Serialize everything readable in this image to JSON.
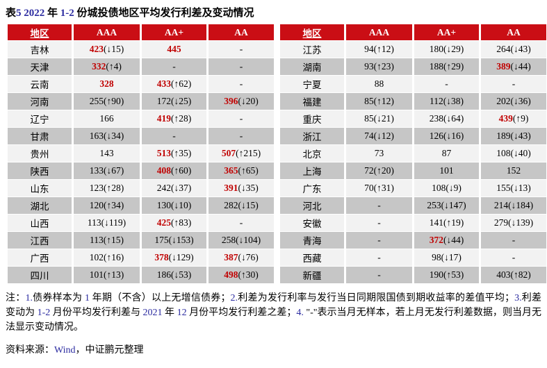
{
  "title": "表5  2022 年 1-2 份城投债地区平均发行利差及变动情况",
  "colors": {
    "header_bg": "#CA0E15",
    "row_light": "#F2F2F2",
    "row_dark": "#C6C6C6",
    "red_value": "#C00000",
    "digit_blue": "#2B2BA0"
  },
  "table": {
    "headers": [
      "地区",
      "AAA",
      "AA+",
      "AA"
    ],
    "left_rows": [
      {
        "region": "吉林",
        "cells": [
          {
            "num": "423",
            "chg": "↓15",
            "red": true
          },
          {
            "num": "445",
            "chg": "",
            "red": true
          },
          {
            "num": "-",
            "chg": "",
            "red": false
          }
        ]
      },
      {
        "region": "天津",
        "cells": [
          {
            "num": "332",
            "chg": "↑4",
            "red": true
          },
          {
            "num": "-",
            "chg": "",
            "red": false
          },
          {
            "num": "-",
            "chg": "",
            "red": false
          }
        ]
      },
      {
        "region": "云南",
        "cells": [
          {
            "num": "328",
            "chg": "",
            "red": true
          },
          {
            "num": "433",
            "chg": "↑62",
            "red": true
          },
          {
            "num": "-",
            "chg": "",
            "red": false
          }
        ]
      },
      {
        "region": "河南",
        "cells": [
          {
            "num": "255",
            "chg": "↑90",
            "red": false
          },
          {
            "num": "172",
            "chg": "↓25",
            "red": false
          },
          {
            "num": "396",
            "chg": "↓20",
            "red": true
          }
        ]
      },
      {
        "region": "辽宁",
        "cells": [
          {
            "num": "166",
            "chg": "",
            "red": false
          },
          {
            "num": "419",
            "chg": "↑28",
            "red": true
          },
          {
            "num": "-",
            "chg": "",
            "red": false
          }
        ]
      },
      {
        "region": "甘肃",
        "cells": [
          {
            "num": "163",
            "chg": "↓34",
            "red": false
          },
          {
            "num": "-",
            "chg": "",
            "red": false
          },
          {
            "num": "-",
            "chg": "",
            "red": false
          }
        ]
      },
      {
        "region": "贵州",
        "cells": [
          {
            "num": "143",
            "chg": "",
            "red": false
          },
          {
            "num": "513",
            "chg": "↑35",
            "red": true
          },
          {
            "num": "507",
            "chg": "↑215",
            "red": true
          }
        ]
      },
      {
        "region": "陕西",
        "cells": [
          {
            "num": "133",
            "chg": "↓67",
            "red": false
          },
          {
            "num": "408",
            "chg": "↑60",
            "red": true
          },
          {
            "num": "365",
            "chg": "↑65",
            "red": true
          }
        ]
      },
      {
        "region": "山东",
        "cells": [
          {
            "num": "123",
            "chg": "↑28",
            "red": false
          },
          {
            "num": "242",
            "chg": "↓37",
            "red": false
          },
          {
            "num": "391",
            "chg": "↓35",
            "red": true
          }
        ]
      },
      {
        "region": "湖北",
        "cells": [
          {
            "num": "120",
            "chg": "↑34",
            "red": false
          },
          {
            "num": "130",
            "chg": "↓10",
            "red": false
          },
          {
            "num": "282",
            "chg": "↓15",
            "red": false
          }
        ]
      },
      {
        "region": "山西",
        "cells": [
          {
            "num": "113",
            "chg": "↓119",
            "red": false
          },
          {
            "num": "425",
            "chg": "↑83",
            "red": true
          },
          {
            "num": "-",
            "chg": "",
            "red": false
          }
        ]
      },
      {
        "region": "江西",
        "cells": [
          {
            "num": "113",
            "chg": "↑15",
            "red": false
          },
          {
            "num": "175",
            "chg": "↓153",
            "red": false
          },
          {
            "num": "258",
            "chg": "↓104",
            "red": false
          }
        ]
      },
      {
        "region": "广西",
        "cells": [
          {
            "num": "102",
            "chg": "↑16",
            "red": false
          },
          {
            "num": "378",
            "chg": "↓129",
            "red": true
          },
          {
            "num": "387",
            "chg": "↓76",
            "red": true
          }
        ]
      },
      {
        "region": "四川",
        "cells": [
          {
            "num": "101",
            "chg": "↑13",
            "red": false
          },
          {
            "num": "186",
            "chg": "↓53",
            "red": false
          },
          {
            "num": "498",
            "chg": "↑30",
            "red": true
          }
        ]
      }
    ],
    "right_rows": [
      {
        "region": "江苏",
        "cells": [
          {
            "num": "94",
            "chg": "↑12",
            "red": false
          },
          {
            "num": "180",
            "chg": "↓29",
            "red": false
          },
          {
            "num": "264",
            "chg": "↓43",
            "red": false
          }
        ]
      },
      {
        "region": "湖南",
        "cells": [
          {
            "num": "93",
            "chg": "↑23",
            "red": false
          },
          {
            "num": "188",
            "chg": "↑29",
            "red": false
          },
          {
            "num": "389",
            "chg": "↓44",
            "red": true
          }
        ]
      },
      {
        "region": "宁夏",
        "cells": [
          {
            "num": "88",
            "chg": "",
            "red": false
          },
          {
            "num": "-",
            "chg": "",
            "red": false
          },
          {
            "num": "-",
            "chg": "",
            "red": false
          }
        ]
      },
      {
        "region": "福建",
        "cells": [
          {
            "num": "85",
            "chg": "↑12",
            "red": false
          },
          {
            "num": "112",
            "chg": "↓38",
            "red": false
          },
          {
            "num": "202",
            "chg": "↓36",
            "red": false
          }
        ]
      },
      {
        "region": "重庆",
        "cells": [
          {
            "num": "85",
            "chg": "↓21",
            "red": false
          },
          {
            "num": "238",
            "chg": "↓64",
            "red": false
          },
          {
            "num": "439",
            "chg": "↑9",
            "red": true
          }
        ]
      },
      {
        "region": "浙江",
        "cells": [
          {
            "num": "74",
            "chg": "↓12",
            "red": false
          },
          {
            "num": "126",
            "chg": "↓16",
            "red": false
          },
          {
            "num": "189",
            "chg": "↓43",
            "red": false
          }
        ]
      },
      {
        "region": "北京",
        "cells": [
          {
            "num": "73",
            "chg": "",
            "red": false
          },
          {
            "num": "87",
            "chg": "",
            "red": false
          },
          {
            "num": "108",
            "chg": "↓40",
            "red": false
          }
        ]
      },
      {
        "region": "上海",
        "cells": [
          {
            "num": "72",
            "chg": "↑20",
            "red": false
          },
          {
            "num": "101",
            "chg": "",
            "red": false
          },
          {
            "num": "152",
            "chg": "",
            "red": false
          }
        ]
      },
      {
        "region": "广东",
        "cells": [
          {
            "num": "70",
            "chg": "↑31",
            "red": false
          },
          {
            "num": "108",
            "chg": "↓9",
            "red": false
          },
          {
            "num": "155",
            "chg": "↓13",
            "red": false
          }
        ]
      },
      {
        "region": "河北",
        "cells": [
          {
            "num": "-",
            "chg": "",
            "red": false
          },
          {
            "num": "253",
            "chg": "↓147",
            "red": false
          },
          {
            "num": "214",
            "chg": "↓184",
            "red": false
          }
        ]
      },
      {
        "region": "安徽",
        "cells": [
          {
            "num": "-",
            "chg": "",
            "red": false
          },
          {
            "num": "141",
            "chg": "↑19",
            "red": false
          },
          {
            "num": "279",
            "chg": "↓139",
            "red": false
          }
        ]
      },
      {
        "region": "青海",
        "cells": [
          {
            "num": "-",
            "chg": "",
            "red": false
          },
          {
            "num": "372",
            "chg": "↓44",
            "red": true
          },
          {
            "num": "-",
            "chg": "",
            "red": false
          }
        ]
      },
      {
        "region": "西藏",
        "cells": [
          {
            "num": "-",
            "chg": "",
            "red": false
          },
          {
            "num": "98",
            "chg": "↓17",
            "red": false
          },
          {
            "num": "-",
            "chg": "",
            "red": false
          }
        ]
      },
      {
        "region": "新疆",
        "cells": [
          {
            "num": "-",
            "chg": "",
            "red": false
          },
          {
            "num": "190",
            "chg": "↑53",
            "red": false
          },
          {
            "num": "403",
            "chg": "↑82",
            "red": false
          }
        ]
      }
    ]
  },
  "notes": "注：1.债券样本为 1 年期（不含）以上无增信债券；2.利差为发行利率与发行当日同期限国债到期收益率的差值平均；3.利差变动为 1-2 月份平均发行利差与 2021 年 12 月份平均发行利差之差；4. \"-\"表示当月无样本，若上月无发行利差数据，则当月无法显示变动情况。",
  "source": "资料来源：Wind，中证鹏元整理"
}
